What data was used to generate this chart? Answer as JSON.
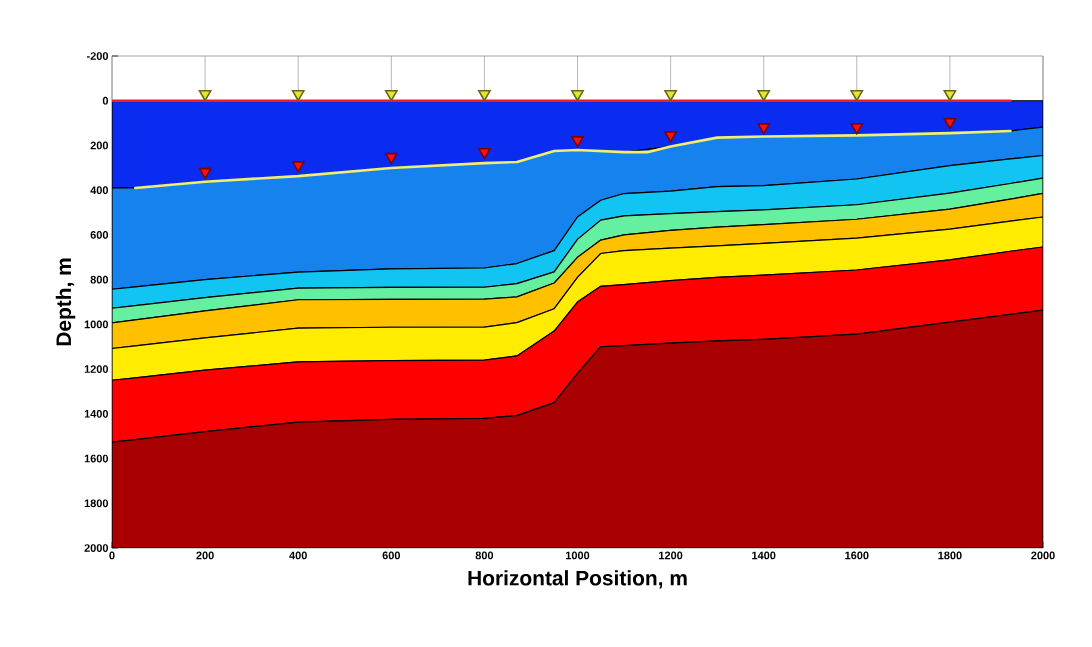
{
  "chart_data": {
    "type": "area",
    "stacked": true,
    "xlabel": "Horizontal Position, m",
    "ylabel": "Depth, m",
    "xlim": [
      0,
      2000
    ],
    "ylim": [
      2000,
      -200
    ],
    "xticks": [
      0,
      200,
      400,
      600,
      800,
      1000,
      1200,
      1400,
      1600,
      1800,
      2000
    ],
    "yticks": [
      -200,
      0,
      200,
      400,
      600,
      800,
      1000,
      1200,
      1400,
      1600,
      1800,
      2000
    ],
    "grid": "x",
    "x": [
      0,
      50,
      200,
      400,
      600,
      800,
      870,
      950,
      1000,
      1050,
      1100,
      1200,
      1300,
      1400,
      1600,
      1800,
      1930,
      2000
    ],
    "series": [
      {
        "type": "area",
        "color": "#0a2cf0",
        "values": [
          390,
          390,
          362,
          337,
          301,
          279,
          274,
          225,
          220,
          225,
          230,
          205,
          165,
          160,
          155,
          145,
          135,
          118
        ]
      },
      {
        "type": "area",
        "color": "#1682ee",
        "values": [
          453,
          442,
          438,
          429,
          451,
          469,
          454,
          445,
          300,
          220,
          185,
          199,
          219,
          220,
          195,
          145,
          125,
          127
        ]
      },
      {
        "type": "area",
        "color": "#12c4f2",
        "values": [
          85,
          84,
          80,
          72,
          83,
          86,
          90,
          95,
          100,
          89,
          100,
          101,
          112,
          108,
          115,
          123,
          110,
          101
        ]
      },
      {
        "type": "area",
        "color": "#64f0a0",
        "values": [
          65,
          64,
          60,
          52,
          53,
          53,
          59,
          50,
          80,
          89,
          85,
          75,
          69,
          66,
          65,
          72,
          70,
          68
        ]
      },
      {
        "type": "area",
        "color": "#ffc000",
        "values": [
          115,
          116,
          120,
          127,
          125,
          125,
          115,
          115,
          90,
          60,
          70,
          79,
          84,
          84,
          84,
          89,
          98,
          106
        ]
      },
      {
        "type": "area",
        "color": "#ffec00",
        "values": [
          142,
          143,
          145,
          151,
          149,
          148,
          149,
          100,
          110,
          147,
          152,
          145,
          141,
          142,
          143,
          138,
          135,
          134
        ]
      },
      {
        "type": "area",
        "color": "#ff0000",
        "values": [
          277,
          276,
          275,
          269,
          263,
          260,
          267,
          320,
          319,
          270,
          273,
          280,
          284,
          287,
          287,
          278,
          282,
          282
        ]
      },
      {
        "type": "area",
        "color": "#a80000",
        "values": [
          473,
          485,
          520,
          563,
          575,
          580,
          592,
          650,
          781,
          900,
          905,
          916,
          926,
          933,
          956,
          1010,
          1045,
          1064
        ]
      },
      {
        "type": "line",
        "color": "#ff1a1a",
        "x": [
          0,
          1930
        ],
        "values": [
          0,
          0
        ]
      },
      {
        "type": "line",
        "color": "#f0f070",
        "x": [
          50,
          200,
          400,
          600,
          800,
          870,
          950,
          1000,
          1100,
          1150,
          1200,
          1300,
          1400,
          1600,
          1800,
          1930
        ],
        "values": [
          390,
          362,
          337,
          301,
          279,
          274,
          225,
          220,
          230,
          230,
          205,
          165,
          160,
          155,
          145,
          135
        ]
      },
      {
        "type": "scatter",
        "marker": "triangle",
        "color": "#e6e632",
        "x": [
          200,
          400,
          600,
          800,
          1000,
          1200,
          1400,
          1600,
          1800
        ],
        "values": [
          -30,
          -30,
          -30,
          -30,
          -30,
          -30,
          -30,
          -30,
          -30
        ]
      },
      {
        "type": "scatter",
        "marker": "triangle",
        "color": "#ff1010",
        "x": [
          200,
          400,
          600,
          800,
          1000,
          1200,
          1400,
          1600,
          1800
        ],
        "values": [
          318,
          288,
          251,
          229,
          176,
          154,
          118,
          118,
          95
        ]
      }
    ]
  }
}
